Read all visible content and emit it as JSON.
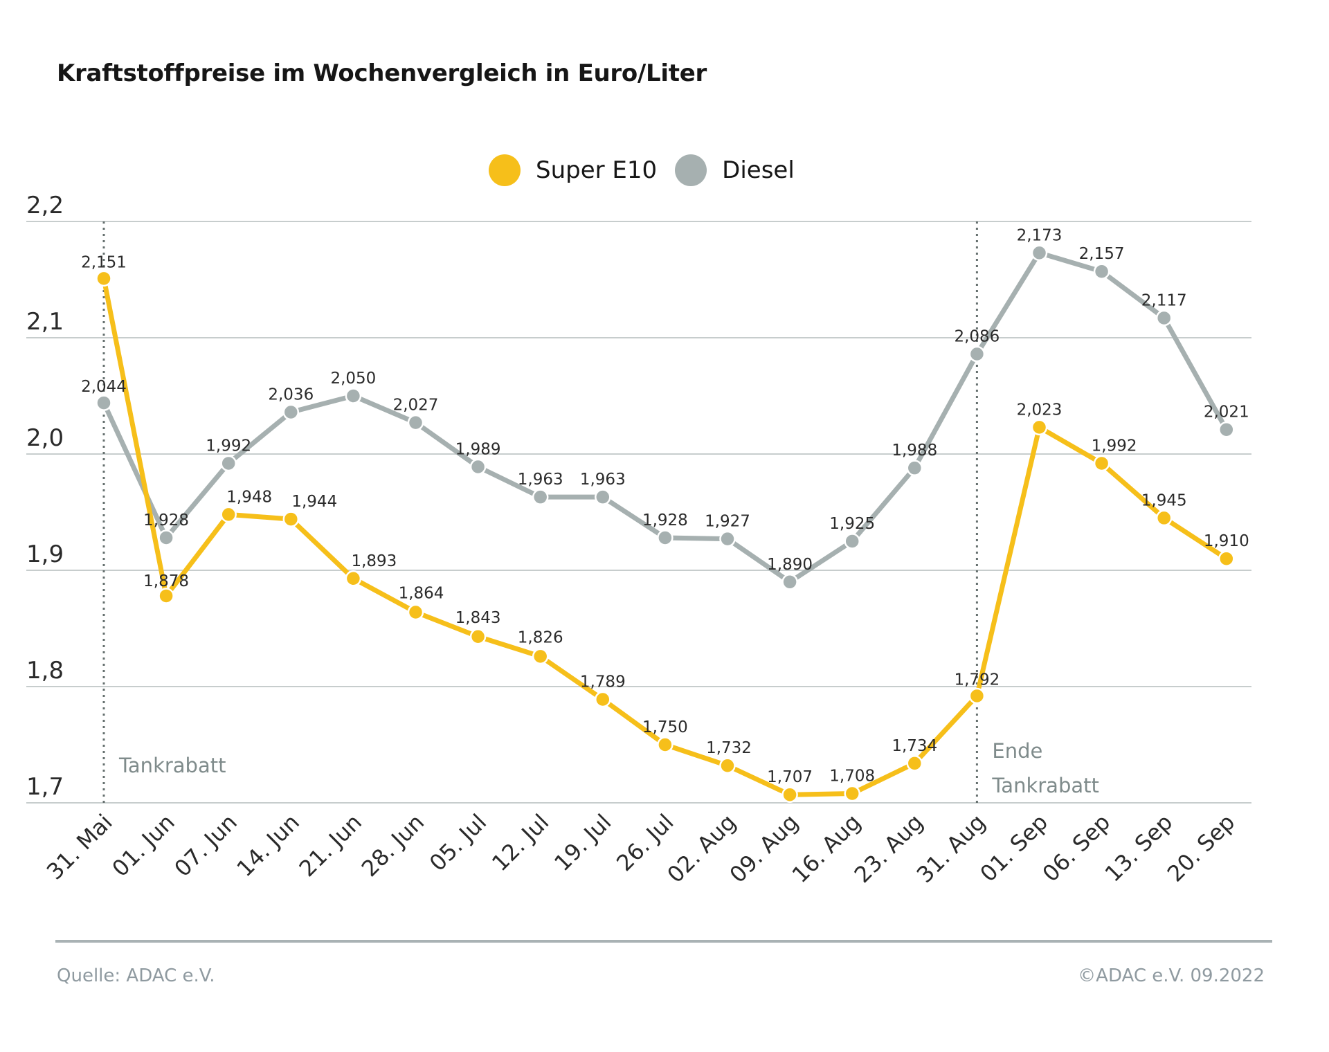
{
  "chart_data": {
    "type": "line",
    "title": "Kraftstoffpreise im Wochenvergleich in Euro/Liter",
    "categories": [
      "31. Mai",
      "01. Jun",
      "07. Jun",
      "14. Jun",
      "21. Jun",
      "28. Jun",
      "05. Jul",
      "12. Jul",
      "19. Jul",
      "26. Jul",
      "02. Aug",
      "09. Aug",
      "16. Aug",
      "23. Aug",
      "31. Aug",
      "01. Sep",
      "06. Sep",
      "13. Sep",
      "20. Sep"
    ],
    "series": [
      {
        "name": "Super E10",
        "color": "#f6bf1a",
        "values": [
          2.151,
          1.878,
          1.948,
          1.944,
          1.893,
          1.864,
          1.843,
          1.826,
          1.789,
          1.75,
          1.732,
          1.707,
          1.708,
          1.734,
          1.792,
          2.023,
          1.992,
          1.945,
          1.91
        ],
        "labels": [
          "2,151",
          "1,878",
          "1,948",
          "1,944",
          "1,893",
          "1,864",
          "1,843",
          "1,826",
          "1,789",
          "1,750",
          "1,732",
          "1,707",
          "1,708",
          "1,734",
          "1,792",
          "2,023",
          "1,992",
          "1,945",
          "1,910"
        ]
      },
      {
        "name": "Diesel",
        "color": "#a6b0b0",
        "values": [
          2.044,
          1.928,
          1.992,
          2.036,
          2.05,
          2.027,
          1.989,
          1.963,
          1.963,
          1.928,
          1.927,
          1.89,
          1.925,
          1.988,
          2.086,
          2.173,
          2.157,
          2.117,
          2.021
        ],
        "labels": [
          "2,044",
          "1,928",
          "1,992",
          "2,036",
          "2,050",
          "2,027",
          "1,989",
          "1,963",
          "1,963",
          "1,928",
          "1,927",
          "1,890",
          "1,925",
          "1,988",
          "2,086",
          "2,173",
          "2,157",
          "2,117",
          "2,021"
        ]
      }
    ],
    "ylim": [
      1.7,
      2.2
    ],
    "yticks": [
      1.7,
      1.8,
      1.9,
      2.0,
      2.1,
      2.2
    ],
    "ytick_labels": [
      "1,7",
      "1,8",
      "1,9",
      "2,0",
      "2,1",
      "2,2"
    ],
    "grid": true,
    "legend_position": "top-center",
    "annotations": [
      {
        "category": "31. Mai",
        "lines": [
          "Tankrabatt"
        ]
      },
      {
        "category": "31. Aug",
        "lines": [
          "Ende",
          "Tankrabatt"
        ]
      }
    ]
  },
  "footer": {
    "source": "Quelle: ADAC e.V.",
    "copyright": "©ADAC e.V.  09.2022"
  }
}
